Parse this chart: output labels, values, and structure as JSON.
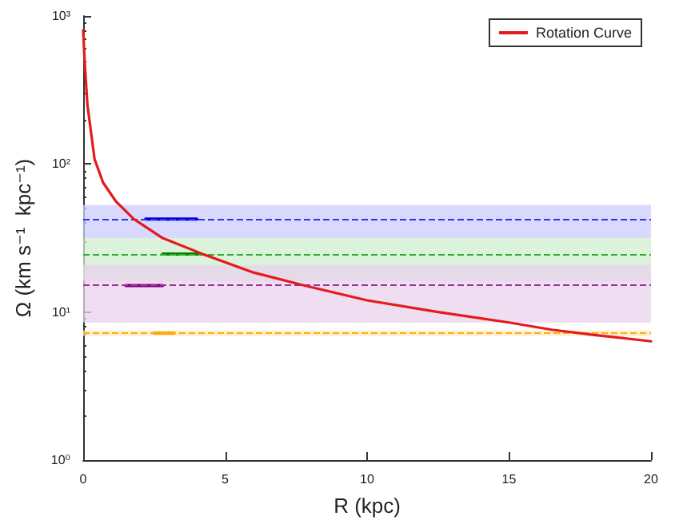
{
  "chart_data": {
    "type": "line",
    "xlabel": "R (kpc)",
    "ylabel": "Ω (km s⁻¹  kpc⁻¹)",
    "log": "y",
    "xlim": [
      0,
      20
    ],
    "xticks": [
      0,
      5,
      10,
      15,
      20
    ],
    "ylim": [
      1,
      1000
    ],
    "yticks": [
      {
        "value": 1,
        "label": "10⁰"
      },
      {
        "value": 10,
        "label": "10¹"
      },
      {
        "value": 100,
        "label": "10²"
      },
      {
        "value": 1000,
        "label": "10³"
      }
    ],
    "grid": false,
    "legend": "top right",
    "marker": "none",
    "line_style": "solid",
    "series": [
      {
        "name": "Rotation Curve",
        "color": "#e41a1c",
        "x": [
          0,
          0.05,
          0.15,
          0.4,
          0.7,
          1.15,
          1.78,
          2.8,
          4.2,
          6,
          7.8,
          10,
          12.5,
          15,
          16.5,
          18,
          20
        ],
        "values": [
          800,
          500,
          250,
          108,
          75,
          56,
          42.5,
          31.6,
          24.7,
          18.5,
          15.1,
          12,
          10,
          8.5,
          7.6,
          7,
          6.35
        ]
      },
      {
        "color": "#0000cc",
        "x": [
          2.2,
          4
        ],
        "values": [
          42.5,
          42.5
        ]
      },
      {
        "color": "#008800",
        "x": [
          2.8,
          4.1
        ],
        "values": [
          24.7,
          24.7
        ]
      },
      {
        "color": "#800080",
        "x": [
          1.5,
          2.8
        ],
        "values": [
          15.1,
          15.1
        ]
      },
      {
        "color": "#ffa500",
        "x": [
          2.5,
          3.2
        ],
        "values": [
          7.2,
          7.2
        ]
      }
    ],
    "bands": [
      {
        "axis": "y",
        "from": 31.6,
        "to": 53,
        "color": "#ccccff"
      },
      {
        "axis": "y",
        "from": 16.2,
        "to": 31.6,
        "color": "#cfeecf"
      },
      {
        "axis": "y",
        "from": 8.5,
        "to": 20.8,
        "color": "#ead2ee"
      },
      {
        "axis": "y",
        "from": 6.9,
        "to": 7.5,
        "color": "#ffe8b8"
      }
    ],
    "ref_lines": [
      {
        "axis": "y",
        "value": 42.5,
        "color": "#3333dd",
        "line_style": "dashed"
      },
      {
        "axis": "y",
        "value": 24.7,
        "color": "#33aa33",
        "line_style": "dashed"
      },
      {
        "axis": "y",
        "value": 15.1,
        "color": "#993399",
        "line_style": "dashed"
      },
      {
        "axis": "y",
        "value": 7.2,
        "color": "#ffaa22",
        "line_style": "dashed"
      }
    ]
  }
}
